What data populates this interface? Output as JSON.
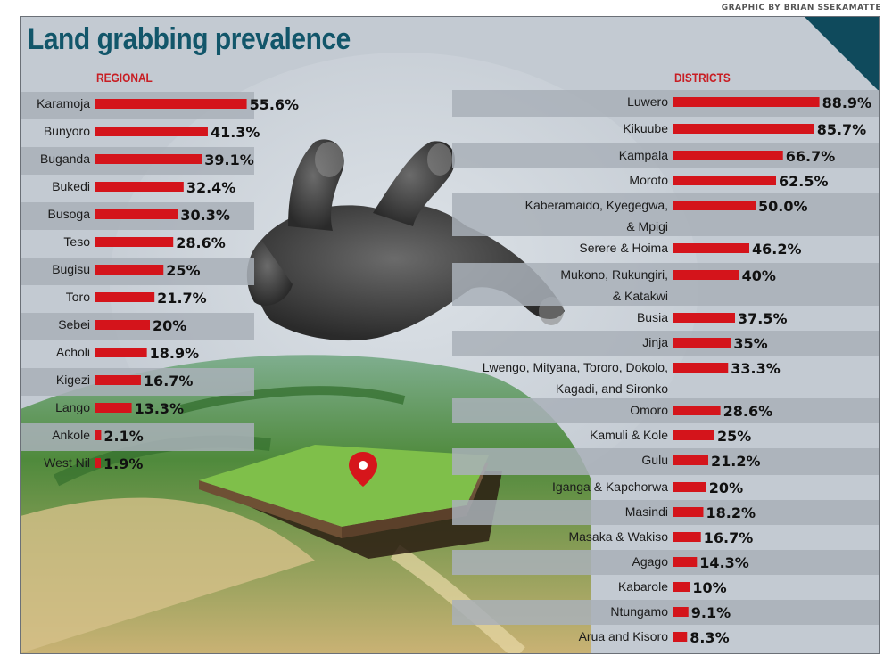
{
  "credit": "GRAPHIC BY BRIAN SSEKAMATTE",
  "title": "Land grabbing prevalence",
  "colors": {
    "bar": "#d4141b",
    "title": "#12566a",
    "header": "#c81e24",
    "stripe": "#a9b0b9",
    "background": "#c3cad2"
  },
  "chart_data": [
    {
      "type": "bar",
      "orientation": "horizontal",
      "title": "REGIONAL",
      "unit": "%",
      "categories": [
        [
          "Karamoja"
        ],
        [
          "Bunyoro"
        ],
        [
          "Buganda"
        ],
        [
          "Bukedi"
        ],
        [
          "Busoga"
        ],
        [
          "Teso"
        ],
        [
          "Bugisu"
        ],
        [
          "Toro"
        ],
        [
          "Sebei"
        ],
        [
          "Acholi"
        ],
        [
          "Kigezi"
        ],
        [
          "Lango"
        ],
        [
          "Ankole"
        ],
        [
          "West Nil"
        ]
      ],
      "values": [
        55.6,
        41.3,
        39.1,
        32.4,
        30.3,
        28.6,
        25,
        21.7,
        20,
        18.9,
        16.7,
        13.3,
        2.1,
        1.9
      ],
      "value_labels": [
        "55.6%",
        "41.3%",
        "39.1%",
        "32.4%",
        "30.3%",
        "28.6%",
        "25%",
        "21.7%",
        "20%",
        "18.9%",
        "16.7%",
        "13.3%",
        "2.1%",
        "1.9%"
      ]
    },
    {
      "type": "bar",
      "orientation": "horizontal",
      "title": "DISTRICTS",
      "unit": "%",
      "categories": [
        [
          "Luwero"
        ],
        [
          "Kikuube"
        ],
        [
          "Kampala"
        ],
        [
          "Moroto"
        ],
        [
          "Kaberamaido, Kyegegwa,",
          "& Mpigi"
        ],
        [
          "Serere & Hoima"
        ],
        [
          "Mukono, Rukungiri,",
          "& Katakwi"
        ],
        [
          "Busia"
        ],
        [
          "Jinja"
        ],
        [
          "Lwengo, Mityana, Tororo, Dokolo,",
          "Kagadi, and Sironko"
        ],
        [
          "Omoro"
        ],
        [
          "Kamuli & Kole"
        ],
        [
          "Gulu"
        ],
        [
          "Iganga & Kapchorwa"
        ],
        [
          "Masindi"
        ],
        [
          "Masaka & Wakiso"
        ],
        [
          "Agago"
        ],
        [
          "Kabarole"
        ],
        [
          "Ntungamo"
        ],
        [
          "Arua and Kisoro"
        ]
      ],
      "values": [
        88.9,
        85.7,
        66.7,
        62.5,
        50.0,
        46.2,
        40,
        37.5,
        35,
        33.3,
        28.6,
        25,
        21.2,
        20,
        18.2,
        16.7,
        14.3,
        10,
        9.1,
        8.3
      ],
      "value_labels": [
        "88.9%",
        "85.7%",
        "66.7%",
        "62.5%",
        "50.0%",
        "46.2%",
        "40%",
        "37.5%",
        "35%",
        "33.3%",
        "28.6%",
        "25%",
        "21.2%",
        "20%",
        "18.2%",
        "16.7%",
        "14.3%",
        "10%",
        "9.1%",
        "8.3%"
      ]
    }
  ]
}
